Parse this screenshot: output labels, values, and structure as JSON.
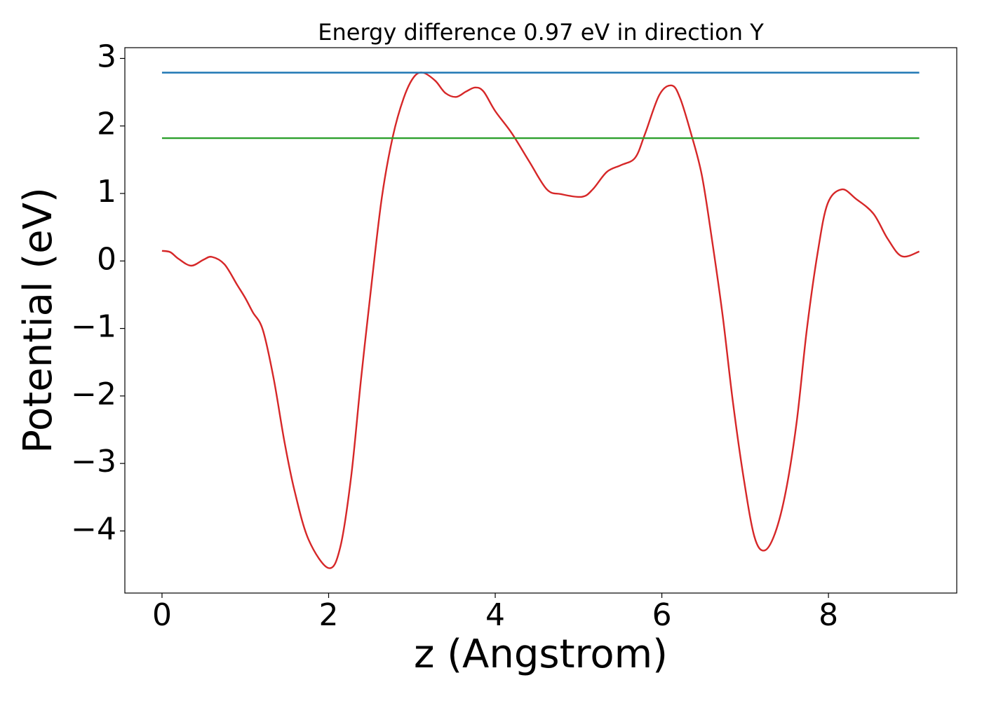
{
  "chart_data": {
    "type": "line",
    "title": "Energy difference 0.97 eV in direction Y",
    "xlabel": "z (Angstrom)",
    "ylabel": "Potential (eV)",
    "xlim": [
      -0.446,
      9.54
    ],
    "ylim": [
      -4.92,
      3.16
    ],
    "xticks": [
      0,
      2,
      4,
      6,
      8
    ],
    "yticks": [
      {
        "value": -4,
        "label": "−4"
      },
      {
        "value": -3,
        "label": "−3"
      },
      {
        "value": -2,
        "label": "−2"
      },
      {
        "value": -1,
        "label": "−1"
      },
      0,
      1,
      2,
      3
    ],
    "series": [
      {
        "color": "#d62728",
        "x": [
          0,
          0.1,
          0.2,
          0.35,
          0.5,
          0.6,
          0.75,
          0.9,
          1.0,
          1.09,
          1.21,
          1.34,
          1.47,
          1.59,
          1.76,
          2.0,
          2.14,
          2.27,
          2.39,
          2.52,
          2.64,
          2.77,
          2.9,
          3.02,
          3.13,
          3.28,
          3.4,
          3.53,
          3.65,
          3.76,
          3.86,
          4.0,
          4.2,
          4.41,
          4.62,
          4.79,
          5.04,
          5.17,
          5.34,
          5.51,
          5.68,
          5.8,
          5.97,
          6.12,
          6.22,
          6.35,
          6.48,
          6.6,
          6.73,
          6.85,
          6.98,
          7.11,
          7.23,
          7.36,
          7.49,
          7.62,
          7.74,
          7.87,
          7.99,
          8.16,
          8.33,
          8.54,
          8.71,
          8.88,
          9.09
        ],
        "values": [
          0.15,
          0.13,
          0.03,
          -0.07,
          0.02,
          0.06,
          -0.05,
          -0.35,
          -0.55,
          -0.76,
          -1.02,
          -1.74,
          -2.68,
          -3.4,
          -4.13,
          -4.55,
          -4.24,
          -3.2,
          -1.74,
          -0.29,
          0.95,
          1.84,
          2.41,
          2.72,
          2.79,
          2.67,
          2.49,
          2.43,
          2.51,
          2.57,
          2.51,
          2.22,
          1.89,
          1.47,
          1.06,
          0.99,
          0.95,
          1.06,
          1.32,
          1.42,
          1.53,
          1.89,
          2.46,
          2.6,
          2.41,
          1.89,
          1.27,
          0.33,
          -0.81,
          -2.06,
          -3.2,
          -4.08,
          -4.29,
          -4.03,
          -3.4,
          -2.37,
          -1.02,
          0.12,
          0.85,
          1.06,
          0.92,
          0.7,
          0.33,
          0.07,
          0.14
        ]
      },
      {
        "color": "#1f77b4",
        "x": [
          0,
          9.09
        ],
        "values": [
          2.79,
          2.79
        ]
      },
      {
        "color": "#2ca02c",
        "x": [
          0,
          9.09
        ],
        "values": [
          1.82,
          1.82
        ]
      }
    ]
  }
}
